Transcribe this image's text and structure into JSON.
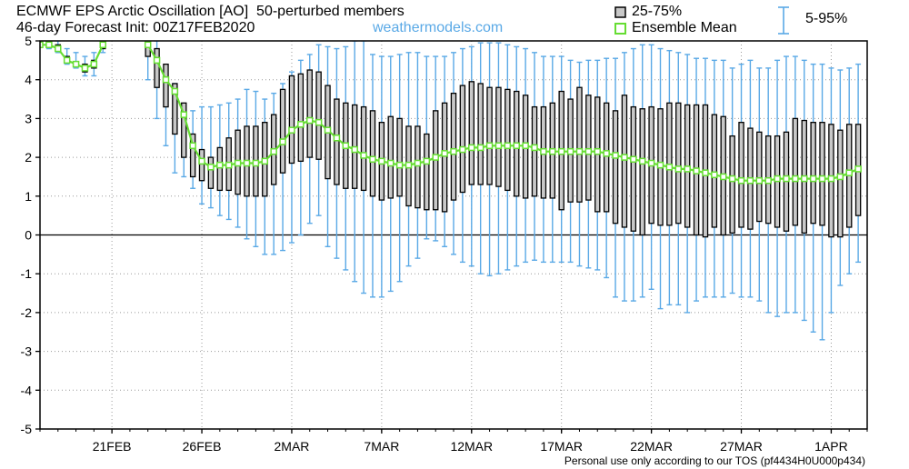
{
  "header": {
    "title_line1": "ECMWF EPS Arctic Oscillation [AO]  50-perturbed members",
    "title_line2": "46-day Forecast Init: 00Z17FEB2020",
    "watermark": "weathermodels.com"
  },
  "legend": {
    "quartile_label": "25-75%",
    "mean_label": "Ensemble Mean",
    "range_label": "5-95%"
  },
  "footer": "Personal use only according to our TOS (pf4434H0U000p434)",
  "colors": {
    "box_fill": "#c8c8c8",
    "box_edge": "#000000",
    "whisker": "#5aa9e6",
    "mean_line": "#66dd33",
    "mean_marker_fill": "#ffffff",
    "zero_line": "#000000",
    "grid": "#9a9a9a"
  },
  "chart_data": {
    "type": "boxplot",
    "title": "ECMWF EPS Arctic Oscillation [AO]  50-perturbed members",
    "subtitle": "46-day Forecast Init: 00Z17FEB2020",
    "xlabel": "",
    "ylabel": "",
    "ylim": [
      -5,
      5
    ],
    "xlim": [
      0,
      46
    ],
    "yticks": [
      -5,
      -4,
      -3,
      -2,
      -1,
      0,
      1,
      2,
      3,
      4,
      5
    ],
    "xticks": [
      {
        "x": 4,
        "label": "21FEB"
      },
      {
        "x": 9,
        "label": "26FEB"
      },
      {
        "x": 14,
        "label": "2MAR"
      },
      {
        "x": 19,
        "label": "7MAR"
      },
      {
        "x": 24,
        "label": "12MAR"
      },
      {
        "x": 29,
        "label": "17MAR"
      },
      {
        "x": 34,
        "label": "22MAR"
      },
      {
        "x": 39,
        "label": "27MAR"
      },
      {
        "x": 44,
        "label": "1APR"
      }
    ],
    "grid": true,
    "legend_position": "top-right",
    "x": [
      0,
      0.5,
      1,
      1.5,
      2,
      2.5,
      3,
      3.5,
      4,
      4.5,
      5,
      5.5,
      6,
      6.5,
      7,
      7.5,
      8,
      8.5,
      9,
      9.5,
      10,
      10.5,
      11,
      11.5,
      12,
      12.5,
      13,
      13.5,
      14,
      14.5,
      15,
      15.5,
      16,
      16.5,
      17,
      17.5,
      18,
      18.5,
      19,
      19.5,
      20,
      20.5,
      21,
      21.5,
      22,
      22.5,
      23,
      23.5,
      24,
      24.5,
      25,
      25.5,
      26,
      26.5,
      27,
      27.5,
      28,
      28.5,
      29,
      29.5,
      30,
      30.5,
      31,
      31.5,
      32,
      32.5,
      33,
      33.5,
      34,
      34.5,
      35,
      35.5,
      36,
      36.5,
      37,
      37.5,
      38,
      38.5,
      39,
      39.5,
      40,
      40.5,
      41,
      41.5,
      42,
      42.5,
      43,
      43.5,
      44,
      44.5,
      45,
      45.5
    ],
    "mean": [
      4.9,
      4.9,
      4.8,
      4.5,
      4.4,
      4.3,
      4.4,
      4.9,
      5.4,
      5.7,
      5.7,
      5.6,
      4.9,
      4.5,
      4.0,
      3.7,
      3.1,
      2.3,
      1.9,
      1.75,
      1.8,
      1.8,
      1.85,
      1.85,
      1.85,
      1.9,
      2.15,
      2.4,
      2.7,
      2.85,
      2.95,
      2.9,
      2.7,
      2.5,
      2.3,
      2.2,
      2.05,
      1.95,
      1.9,
      1.85,
      1.8,
      1.8,
      1.85,
      1.9,
      2.0,
      2.1,
      2.15,
      2.2,
      2.25,
      2.25,
      2.3,
      2.3,
      2.3,
      2.3,
      2.3,
      2.25,
      2.15,
      2.15,
      2.15,
      2.15,
      2.15,
      2.15,
      2.15,
      2.1,
      2.05,
      2.0,
      1.95,
      1.9,
      1.85,
      1.8,
      1.75,
      1.7,
      1.7,
      1.65,
      1.6,
      1.55,
      1.5,
      1.45,
      1.4,
      1.4,
      1.4,
      1.4,
      1.45,
      1.45,
      1.45,
      1.45,
      1.45,
      1.45,
      1.45,
      1.5,
      1.6,
      1.7
    ],
    "q25": [
      4.9,
      4.9,
      4.8,
      4.5,
      4.4,
      4.2,
      4.3,
      4.8,
      5.3,
      5.6,
      5.6,
      5.5,
      4.6,
      3.8,
      3.3,
      2.6,
      2.0,
      1.5,
      1.4,
      1.2,
      1.15,
      1.15,
      1.05,
      1.0,
      1.0,
      1.0,
      1.3,
      1.6,
      1.85,
      1.9,
      2.0,
      1.95,
      1.45,
      1.3,
      1.2,
      1.2,
      1.15,
      1.0,
      0.9,
      0.95,
      1.0,
      0.75,
      0.7,
      0.65,
      0.65,
      0.6,
      0.9,
      1.1,
      1.3,
      1.3,
      1.3,
      1.25,
      1.15,
      1.0,
      0.95,
      1.0,
      0.95,
      0.95,
      0.65,
      0.85,
      0.85,
      0.9,
      0.6,
      0.6,
      0.3,
      0.2,
      0.1,
      0.0,
      0.3,
      0.25,
      0.25,
      0.3,
      0.2,
      0.0,
      -0.05,
      0.2,
      0.0,
      0.05,
      0.2,
      0.15,
      0.35,
      0.3,
      0.2,
      0.1,
      0.25,
      0.05,
      0.3,
      0.25,
      -0.05,
      -0.05,
      0.2,
      0.5
    ],
    "q75": [
      5.0,
      5.0,
      4.9,
      4.6,
      4.45,
      4.4,
      4.5,
      5.0,
      5.5,
      5.8,
      5.8,
      5.7,
      5.2,
      4.8,
      4.4,
      3.9,
      3.4,
      2.6,
      2.2,
      2.0,
      2.25,
      2.5,
      2.7,
      2.8,
      2.8,
      2.9,
      3.1,
      3.75,
      4.1,
      4.15,
      4.25,
      4.2,
      3.85,
      3.5,
      3.4,
      3.35,
      3.3,
      3.2,
      2.9,
      3.05,
      3.0,
      2.8,
      2.8,
      2.6,
      3.2,
      3.4,
      3.65,
      3.85,
      3.95,
      3.9,
      3.8,
      3.8,
      3.75,
      3.7,
      3.6,
      3.3,
      3.3,
      3.4,
      3.7,
      3.5,
      3.8,
      3.6,
      3.55,
      3.4,
      3.2,
      3.6,
      3.3,
      3.25,
      3.3,
      3.25,
      3.4,
      3.4,
      3.35,
      3.35,
      3.35,
      3.1,
      3.05,
      2.55,
      2.9,
      2.75,
      2.65,
      2.55,
      2.55,
      2.65,
      3.0,
      2.95,
      2.9,
      2.9,
      2.85,
      2.7,
      2.85,
      2.85
    ],
    "p05": [
      4.9,
      4.8,
      4.7,
      4.4,
      4.3,
      4.1,
      4.1,
      4.7,
      5.1,
      5.4,
      5.4,
      5.2,
      4.0,
      3.0,
      2.3,
      1.6,
      1.5,
      1.2,
      0.8,
      0.7,
      0.5,
      0.4,
      0.2,
      -0.1,
      -0.3,
      -0.5,
      -0.5,
      -0.4,
      -0.2,
      0.0,
      0.3,
      0.5,
      -0.3,
      -0.6,
      -0.9,
      -1.2,
      -1.5,
      -1.6,
      -1.6,
      -1.45,
      -1.2,
      -0.8,
      -0.6,
      -0.1,
      -0.15,
      -0.3,
      -0.5,
      -0.7,
      -0.8,
      -1.0,
      -1.05,
      -1.0,
      -0.9,
      -0.8,
      -0.7,
      -0.65,
      -0.7,
      -0.7,
      -0.7,
      -0.7,
      -0.8,
      -0.85,
      -0.9,
      -1.1,
      -1.6,
      -1.7,
      -1.7,
      -1.6,
      -1.4,
      -1.9,
      -1.8,
      -1.8,
      -2.0,
      -1.7,
      -1.6,
      -1.6,
      -1.6,
      -1.5,
      -1.6,
      -1.6,
      -1.7,
      -2.0,
      -2.1,
      -2.0,
      -2.0,
      -2.2,
      -2.5,
      -2.7,
      -2.0,
      -1.3,
      -1.0,
      -0.7
    ],
    "p95": [
      5.0,
      5.0,
      5.0,
      4.8,
      4.7,
      4.6,
      4.7,
      5.2,
      5.6,
      6.0,
      6.0,
      6.0,
      5.8,
      5.0,
      4.3,
      3.9,
      3.3,
      3.2,
      3.3,
      3.3,
      3.35,
      3.4,
      3.5,
      3.75,
      3.7,
      3.5,
      3.65,
      3.9,
      4.2,
      4.5,
      4.65,
      4.9,
      4.85,
      4.8,
      4.85,
      5.0,
      5.0,
      4.65,
      4.6,
      4.6,
      4.65,
      4.7,
      4.7,
      4.6,
      4.6,
      4.6,
      4.7,
      4.8,
      4.85,
      4.95,
      4.95,
      4.95,
      4.9,
      4.85,
      4.8,
      4.7,
      4.6,
      4.6,
      4.6,
      4.5,
      4.45,
      4.5,
      4.5,
      4.55,
      4.55,
      4.7,
      4.8,
      4.9,
      4.9,
      4.8,
      4.75,
      4.7,
      4.65,
      4.55,
      4.55,
      4.5,
      4.5,
      4.3,
      4.4,
      4.5,
      4.3,
      4.3,
      4.5,
      4.6,
      4.6,
      4.5,
      4.4,
      4.4,
      4.3,
      4.25,
      4.3,
      4.4
    ]
  }
}
